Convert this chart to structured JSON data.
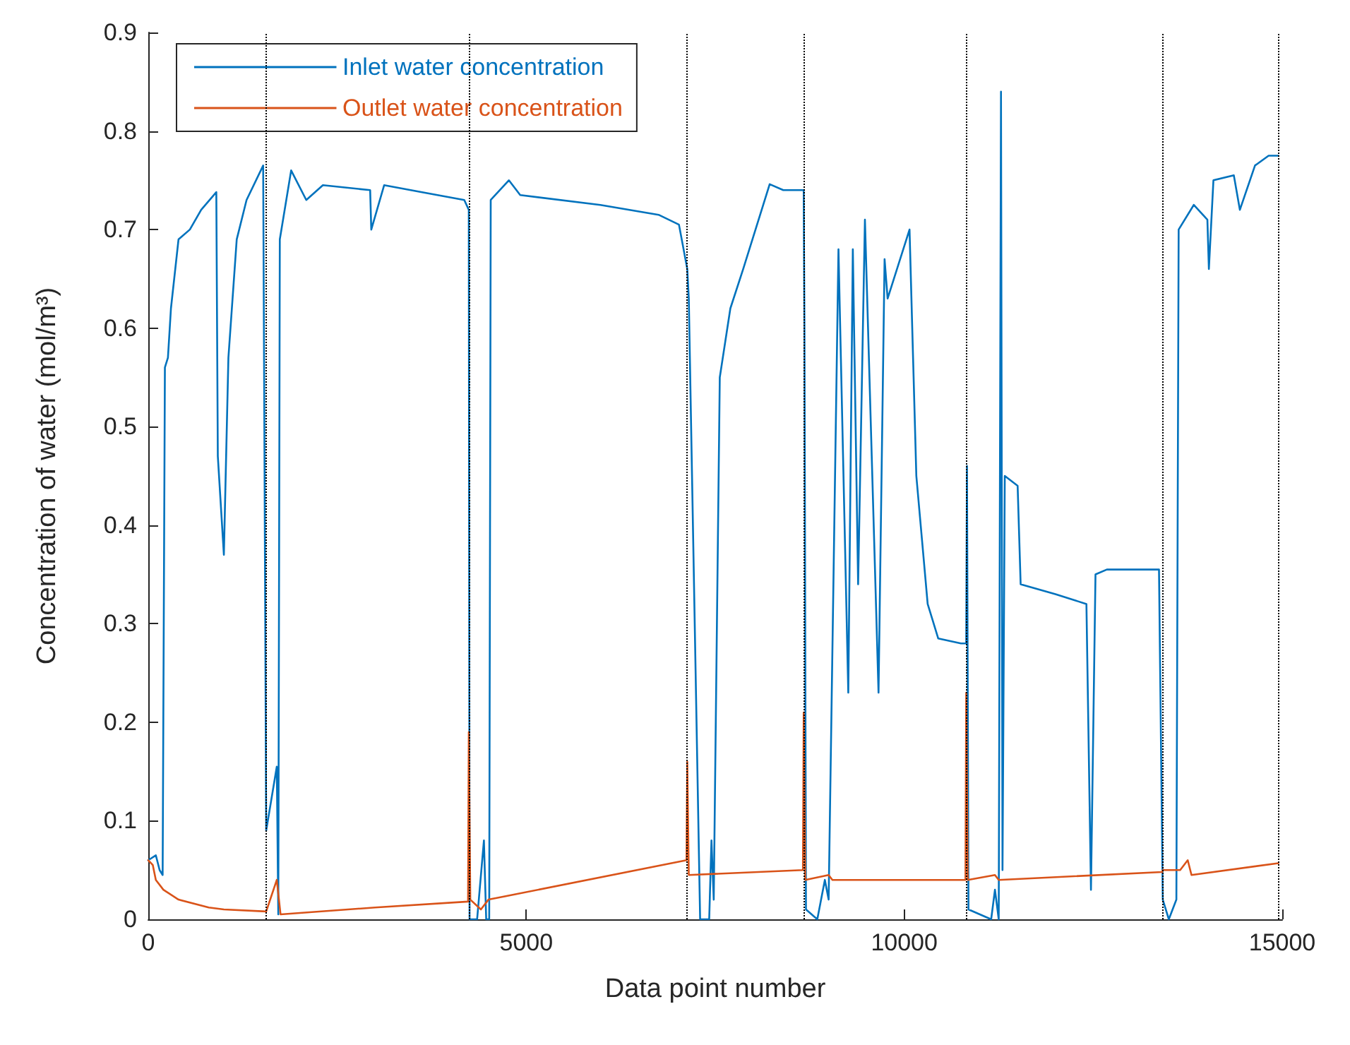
{
  "chart_data": {
    "type": "line",
    "xlabel": "Data point number",
    "ylabel": "Concentration of water (mol/m³)",
    "xlim": [
      0,
      15000
    ],
    "xticks": [
      0,
      5000,
      10000,
      15000
    ],
    "ylim": [
      0,
      0.9
    ],
    "yticks": [
      0,
      0.1,
      0.2,
      0.3,
      0.4,
      0.5,
      0.6,
      0.7,
      0.8,
      0.9
    ],
    "grid": false,
    "legend": "top left",
    "line_style": "solid",
    "marker": "none",
    "series": [
      {
        "name": "Inlet water concentration",
        "color": "#0072bd",
        "x": [
          0,
          100,
          150,
          190,
          220,
          260,
          300,
          400,
          550,
          700,
          900,
          920,
          1000,
          1060,
          1170,
          1300,
          1520,
          1560,
          1700,
          1720,
          1740,
          1890,
          2090,
          2310,
          2935,
          2950,
          3120,
          3610,
          4180,
          4240,
          4250,
          4350,
          4440,
          4470,
          4510,
          4530,
          4770,
          4920,
          5980,
          6750,
          7020,
          7130,
          7150,
          7300,
          7420,
          7450,
          7480,
          7560,
          7700,
          7870,
          8220,
          8400,
          8670,
          8680,
          8700,
          8850,
          8950,
          9000,
          9130,
          9260,
          9320,
          9390,
          9480,
          9660,
          9740,
          9780,
          10070,
          10160,
          10310,
          10450,
          10750,
          10820,
          10830,
          10850,
          11150,
          11200,
          11250,
          11280,
          11300,
          11330,
          11500,
          11540,
          12000,
          12410,
          12470,
          12530,
          12680,
          13370,
          13420,
          13500,
          13600,
          13630,
          13830,
          14010,
          14030,
          14090,
          14360,
          14440,
          14640,
          14820,
          14950
        ],
        "values": [
          0.06,
          0.065,
          0.05,
          0.045,
          0.56,
          0.57,
          0.62,
          0.69,
          0.7,
          0.72,
          0.738,
          0.47,
          0.37,
          0.57,
          0.69,
          0.73,
          0.765,
          0.09,
          0.155,
          0.005,
          0.69,
          0.76,
          0.73,
          0.745,
          0.74,
          0.7,
          0.745,
          0.738,
          0.73,
          0.72,
          0.0,
          0.0,
          0.08,
          0.0,
          0.0,
          0.73,
          0.75,
          0.735,
          0.725,
          0.715,
          0.705,
          0.66,
          0.63,
          0.0,
          0.0,
          0.08,
          0.02,
          0.55,
          0.62,
          0.66,
          0.746,
          0.74,
          0.74,
          0.6,
          0.01,
          0.0,
          0.04,
          0.02,
          0.68,
          0.23,
          0.68,
          0.34,
          0.71,
          0.23,
          0.67,
          0.63,
          0.7,
          0.45,
          0.32,
          0.285,
          0.28,
          0.28,
          0.46,
          0.01,
          0.0,
          0.03,
          0.0,
          0.84,
          0.05,
          0.45,
          0.44,
          0.34,
          0.33,
          0.32,
          0.03,
          0.35,
          0.355,
          0.355,
          0.02,
          0.0,
          0.02,
          0.7,
          0.725,
          0.71,
          0.66,
          0.75,
          0.755,
          0.72,
          0.765,
          0.775,
          0.775
        ]
      },
      {
        "name": "Outlet water concentration",
        "color": "#d95319",
        "x": [
          0,
          60,
          100,
          200,
          400,
          800,
          1000,
          1560,
          1700,
          1750,
          3000,
          4230,
          4240,
          4260,
          4400,
          4500,
          7120,
          7130,
          7150,
          8660,
          8670,
          8690,
          9000,
          9050,
          10810,
          10820,
          10840,
          11200,
          11250,
          13410,
          13420,
          13650,
          13750,
          13800,
          14950
        ],
        "values": [
          0.06,
          0.055,
          0.04,
          0.03,
          0.02,
          0.012,
          0.01,
          0.008,
          0.04,
          0.005,
          0.012,
          0.018,
          0.19,
          0.02,
          0.01,
          0.02,
          0.06,
          0.16,
          0.045,
          0.05,
          0.21,
          0.04,
          0.045,
          0.04,
          0.04,
          0.23,
          0.04,
          0.045,
          0.04,
          0.048,
          0.05,
          0.05,
          0.06,
          0.045,
          0.057
        ]
      }
    ],
    "ref_lines": [
      {
        "axis": "x",
        "value": 1560,
        "color": "#000000",
        "line_style": "dotted"
      },
      {
        "axis": "x",
        "value": 4240,
        "color": "#000000",
        "line_style": "dotted"
      },
      {
        "axis": "x",
        "value": 7130,
        "color": "#000000",
        "line_style": "dotted"
      },
      {
        "axis": "x",
        "value": 8670,
        "color": "#000000",
        "line_style": "dotted"
      },
      {
        "axis": "x",
        "value": 10820,
        "color": "#000000",
        "line_style": "dotted"
      },
      {
        "axis": "x",
        "value": 13420,
        "color": "#000000",
        "line_style": "dotted"
      },
      {
        "axis": "x",
        "value": 14950,
        "color": "#000000",
        "line_style": "dotted"
      }
    ]
  }
}
